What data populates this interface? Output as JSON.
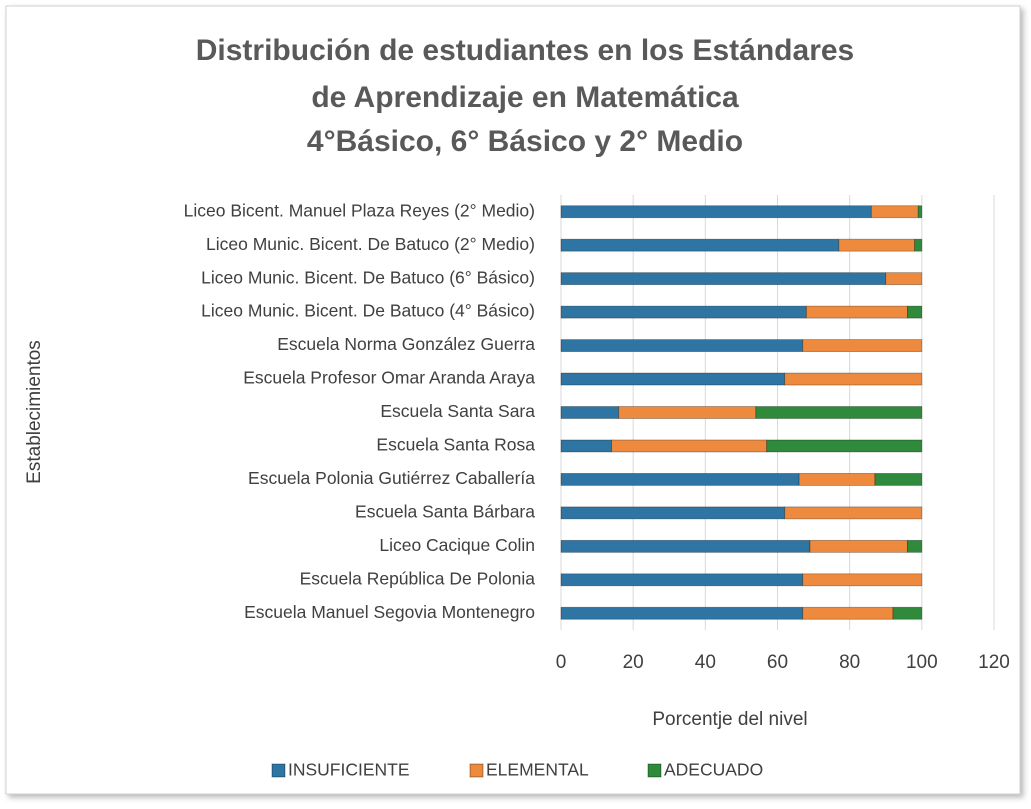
{
  "chart_data": {
    "type": "bar",
    "orientation": "horizontal",
    "stacked": true,
    "title": [
      "Distribución de estudiantes en los Estándares",
      "de Aprendizaje en Matemática",
      "4°Básico, 6° Básico y 2° Medio"
    ],
    "x_label": "Porcentje del nivel",
    "y_label": "Establecimientos",
    "categories": [
      "Liceo Bicent. Manuel Plaza Reyes (2° Medio)",
      "Liceo Munic. Bicent. De Batuco (2° Medio)",
      "Liceo Munic. Bicent. De Batuco (6° Básico)",
      "Liceo Munic. Bicent. De Batuco (4° Básico)",
      "Escuela Norma González Guerra",
      "Escuela Profesor Omar Aranda Araya",
      "Escuela Santa Sara",
      "Escuela Santa Rosa",
      "Escuela Polonia Gutiérrez Caballería",
      "Escuela Santa Bárbara",
      "Liceo Cacique Colin",
      "Escuela República De Polonia",
      "Escuela Manuel Segovia Montenegro"
    ],
    "series": [
      {
        "name": "INSUFICIENTE",
        "color": "#2f75a3",
        "values": [
          86,
          77,
          90,
          68,
          67,
          62,
          16,
          14,
          66,
          62,
          69,
          67,
          67
        ]
      },
      {
        "name": "ELEMENTAL",
        "color": "#ee8a3e",
        "values": [
          13,
          21,
          10,
          28,
          33,
          38,
          38,
          43,
          21,
          38,
          27,
          33,
          25
        ]
      },
      {
        "name": "ADECUADO",
        "color": "#2f8a3c",
        "values": [
          1,
          2,
          0,
          4,
          0,
          0,
          46,
          43,
          13,
          0,
          4,
          0,
          8
        ]
      }
    ],
    "xlim": [
      0,
      120
    ],
    "xticks": [
      0,
      20,
      40,
      60,
      80,
      100,
      120
    ],
    "grid": true,
    "legend": "bottom"
  }
}
